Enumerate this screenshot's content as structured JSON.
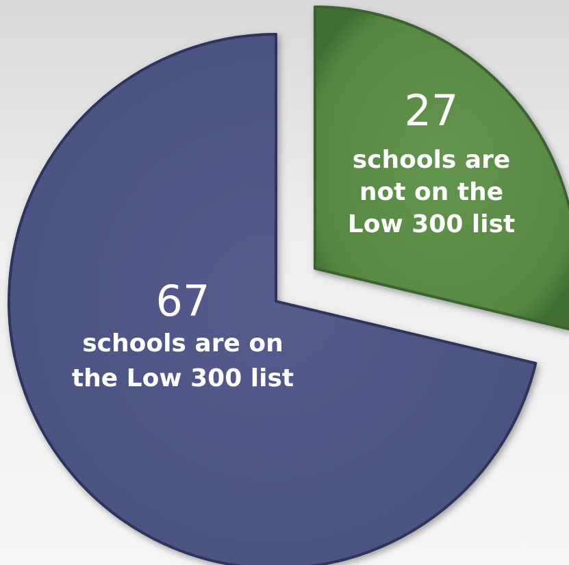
{
  "chart_data": {
    "type": "pie",
    "slices": [
      {
        "value": 67,
        "label_lines": [
          "schools  are on",
          "the Low 300 list"
        ],
        "color": "#4d5484",
        "edge": "#2f355c"
      },
      {
        "value": 27,
        "label_lines": [
          "schools are",
          "not on the",
          "Low 300 list"
        ],
        "color": "#5a8a47",
        "edge": "#3b6330"
      }
    ]
  }
}
